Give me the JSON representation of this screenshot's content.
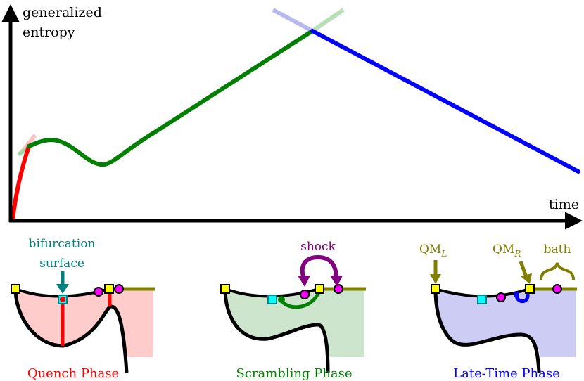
{
  "axes": {
    "y_label_line1": "generalized",
    "y_label_line2": "entropy",
    "x_label": "time"
  },
  "curve_colors": {
    "quench": "#ff0000",
    "scrambling": "#008000",
    "late_time": "#0000ff",
    "bath": "#808000",
    "teal": "#008080",
    "purple": "#800080",
    "magenta": "#ff00ff",
    "yellow": "#ffff00",
    "cyan": "#00ffff"
  },
  "panels": {
    "quench": {
      "title": "Quench Phase",
      "annotation_line1": "bifurcation",
      "annotation_line2": "surface"
    },
    "scrambling": {
      "title": "Scrambling Phase",
      "annotation": "shock"
    },
    "late_time": {
      "title": "Late-Time Phase",
      "qm_left": "QM",
      "qm_left_sub": "L",
      "qm_right": "QM",
      "qm_right_sub": "R",
      "bath": "bath"
    }
  }
}
